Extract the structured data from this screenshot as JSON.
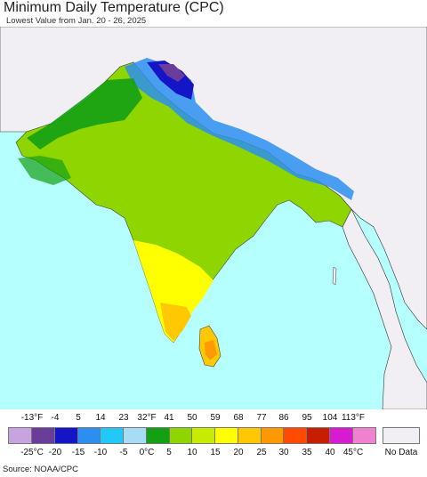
{
  "title": "Minimum Daily Temperature (CPC)",
  "subtitle": "Lowest Value from Jan. 20 - 26, 2025",
  "source": "Source: NOAA/CPC",
  "legend": {
    "fahrenheit_labels": [
      "-13°F",
      "-4",
      "5",
      "14",
      "23",
      "32°F",
      "41",
      "50",
      "59",
      "68",
      "77",
      "86",
      "95",
      "104",
      "113°F"
    ],
    "celsius_labels": [
      "-25°C",
      "-20",
      "-15",
      "-10",
      "-5",
      "0°C",
      "5",
      "10",
      "15",
      "20",
      "25",
      "30",
      "35",
      "40",
      "45°C"
    ],
    "colors": [
      "#c7a3e0",
      "#6a3d9a",
      "#1515c8",
      "#2c8ff0",
      "#22c8f8",
      "#a8dcf6",
      "#13a013",
      "#8fd600",
      "#c8ec00",
      "#ffff00",
      "#ffc800",
      "#ff9900",
      "#ff4a00",
      "#c81e00",
      "#d71bd0",
      "#f080d0"
    ],
    "no_data_label": "No Data",
    "no_data_color": "#f1eef4"
  },
  "map_colors": {
    "ocean": "#b5ffff",
    "land_outside": "#f1eef4"
  }
}
